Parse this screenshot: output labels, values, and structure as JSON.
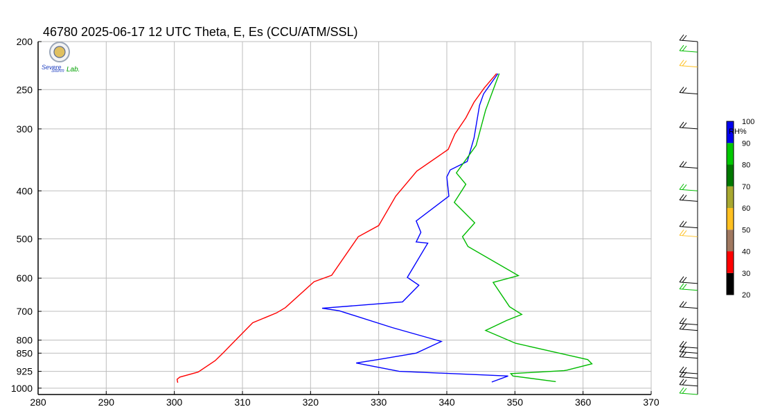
{
  "chart_data": {
    "type": "line",
    "title": "46780  2025-06-17 12 UTC  Theta, E, Es (CCU/ATM/SSL)",
    "xlim": [
      280,
      370
    ],
    "x_ticks": [
      "280",
      "290",
      "300",
      "310",
      "320",
      "330",
      "340",
      "350",
      "360",
      "370"
    ],
    "y_axis": "pressure (log)",
    "ylim": [
      1030,
      200
    ],
    "y_ticks": [
      "200",
      "250",
      "300",
      "400",
      "500",
      "600",
      "700",
      "800",
      "850",
      "925",
      "1000"
    ],
    "grid": true,
    "logo": {
      "text_1": "Severe",
      "text_2": "Storm",
      "text_3": "Lab."
    },
    "series": [
      {
        "color": "#ff0000",
        "points": [
          [
            300.5,
            975
          ],
          [
            300.4,
            960
          ],
          [
            300.8,
            950
          ],
          [
            303.5,
            928
          ],
          [
            306.0,
            880
          ],
          [
            307.2,
            848
          ],
          [
            309.0,
            800
          ],
          [
            311.5,
            738
          ],
          [
            315.0,
            705
          ],
          [
            316.3,
            688
          ],
          [
            320.5,
            610
          ],
          [
            323.1,
            592
          ],
          [
            327.0,
            495
          ],
          [
            330.0,
            470
          ],
          [
            332.5,
            410
          ],
          [
            335.6,
            365
          ],
          [
            340.2,
            330
          ],
          [
            341.2,
            307
          ],
          [
            342.8,
            285
          ],
          [
            344.0,
            265
          ],
          [
            345.5,
            248
          ],
          [
            347.3,
            232
          ]
        ]
      },
      {
        "color": "#0000ff",
        "points": [
          [
            346.6,
            972
          ],
          [
            349.0,
            945
          ],
          [
            333.0,
            925
          ],
          [
            326.7,
            890
          ],
          [
            330.0,
            875
          ],
          [
            335.5,
            850
          ],
          [
            339.2,
            805
          ],
          [
            332.0,
            755
          ],
          [
            324.2,
            698
          ],
          [
            321.7,
            690
          ],
          [
            333.5,
            670
          ],
          [
            335.9,
            620
          ],
          [
            334.2,
            598
          ],
          [
            337.2,
            510
          ],
          [
            335.5,
            507
          ],
          [
            336.2,
            485
          ],
          [
            335.5,
            460
          ],
          [
            340.3,
            410
          ],
          [
            340.0,
            375
          ],
          [
            340.5,
            363
          ],
          [
            343.0,
            349
          ],
          [
            344.0,
            313
          ],
          [
            344.8,
            269
          ],
          [
            345.4,
            255
          ],
          [
            347.5,
            232
          ]
        ]
      },
      {
        "color": "#00bb00",
        "points": [
          [
            356.0,
            970
          ],
          [
            349.7,
            945
          ],
          [
            349.4,
            935
          ],
          [
            357.2,
            922
          ],
          [
            357.6,
            920
          ],
          [
            361.3,
            893
          ],
          [
            360.7,
            876
          ],
          [
            350.1,
            812
          ],
          [
            345.7,
            765
          ],
          [
            348.8,
            730
          ],
          [
            351.0,
            710
          ],
          [
            349.2,
            685
          ],
          [
            346.8,
            612
          ],
          [
            350.5,
            593
          ],
          [
            343.1,
            518
          ],
          [
            342.3,
            495
          ],
          [
            344.1,
            464
          ],
          [
            341.1,
            422
          ],
          [
            342.8,
            388
          ],
          [
            341.4,
            368
          ],
          [
            344.3,
            324
          ],
          [
            345.7,
            275
          ],
          [
            347.7,
            232
          ]
        ]
      }
    ],
    "colorbar": {
      "title": "RH%",
      "ticks": [
        "20",
        "30",
        "40",
        "50",
        "60",
        "70",
        "80",
        "90",
        "100"
      ],
      "colors": [
        "#000000",
        "#ff0000",
        "#a07860",
        "#ffc020",
        "#a8a830",
        "#007800",
        "#00c800",
        "#0000ee"
      ]
    },
    "wind_barb_levels": [
      200,
      210,
      225,
      255,
      300,
      360,
      400,
      420,
      475,
      495,
      615,
      635,
      690,
      745,
      765,
      830,
      850,
      870,
      935,
      955,
      990,
      1030
    ]
  }
}
